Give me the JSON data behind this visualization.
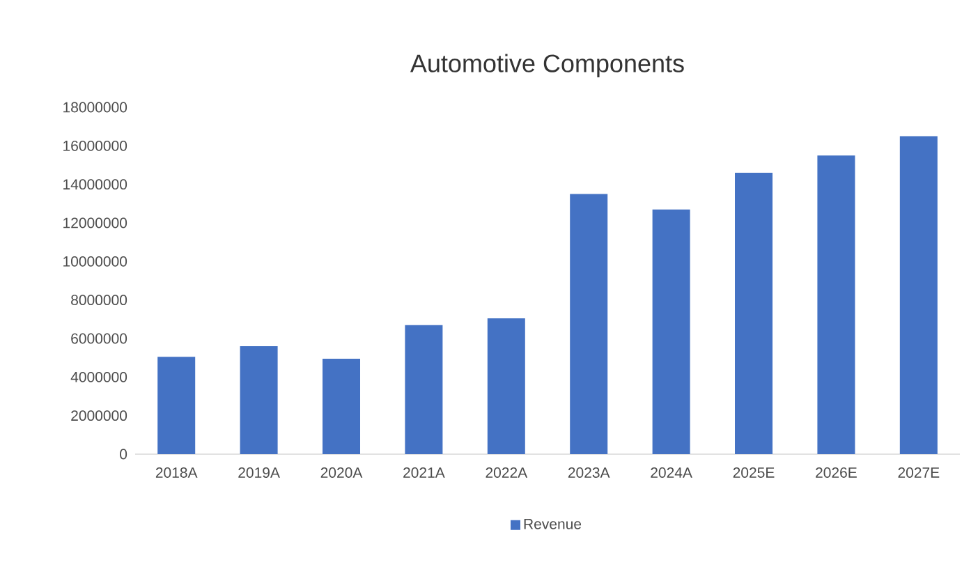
{
  "chart_data": {
    "type": "bar",
    "title": "Automotive Components",
    "categories": [
      "2018A",
      "2019A",
      "2020A",
      "2021A",
      "2022A",
      "2023A",
      "2024A",
      "2025E",
      "2026E",
      "2027E"
    ],
    "series": [
      {
        "name": "Revenue",
        "color": "#4472c4",
        "values": [
          5050000,
          5600000,
          4950000,
          6700000,
          7050000,
          13500000,
          12700000,
          14600000,
          15500000,
          16500000
        ]
      }
    ],
    "ylim": [
      0,
      18000000
    ],
    "yticks": [
      0,
      2000000,
      4000000,
      6000000,
      8000000,
      10000000,
      12000000,
      14000000,
      16000000,
      18000000
    ],
    "legend": "bottom"
  }
}
